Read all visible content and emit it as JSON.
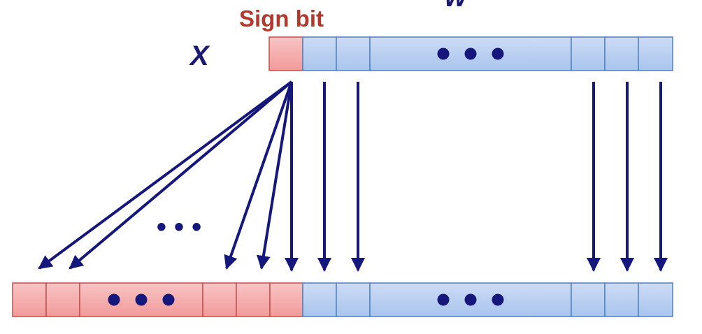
{
  "labels": {
    "sign_bit": "Sign bit",
    "x": "X",
    "w": "w"
  },
  "colors": {
    "sign_cell": "#f4aaaa",
    "sign_border": "#c0504d",
    "data_cell": "#b4cdf0",
    "data_border": "#4f81bd",
    "arrow": "#15177a",
    "dots": "#15177a",
    "sign_label": "#b03a2e",
    "var_label": "#1a1a6e"
  },
  "rows": [
    {
      "name": "source-word",
      "cells": [
        "sign",
        "data",
        "data",
        "data-ellipsis",
        "data",
        "data",
        "data"
      ]
    },
    {
      "name": "extended-word",
      "cells": [
        "sign",
        "sign",
        "sign-ellipsis",
        "sign",
        "sign",
        "sign",
        "data",
        "data",
        "data-ellipsis",
        "data",
        "data",
        "data"
      ]
    }
  ],
  "arrows": {
    "sign_fanout_count": 6,
    "straight_count": 5
  },
  "ellipsis": "• • •"
}
